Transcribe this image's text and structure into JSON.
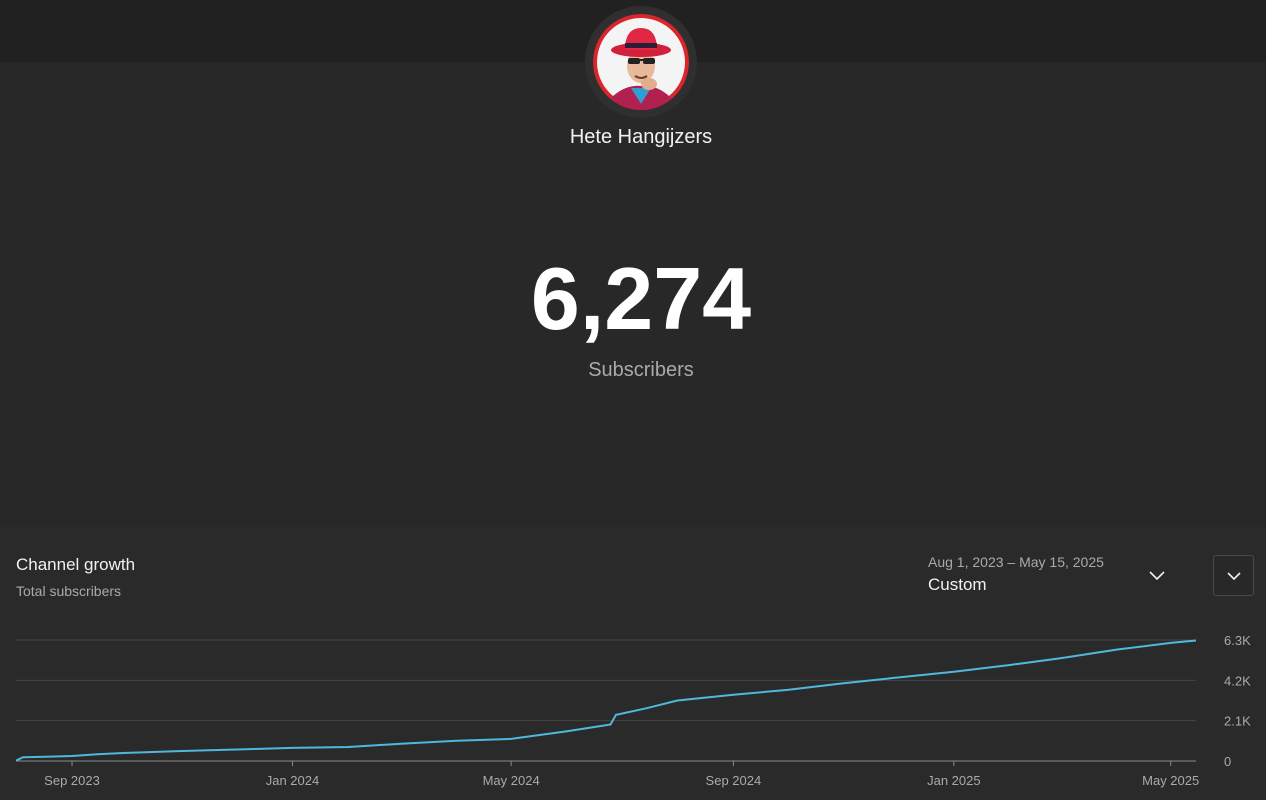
{
  "channel": {
    "name": "Hete Hangijzers",
    "subscriber_count": "6,274",
    "subscriber_label": "Subscribers"
  },
  "growth": {
    "title": "Channel growth",
    "subtitle": "Total subscribers",
    "date_range": "Aug 1, 2023 – May 15, 2025",
    "date_range_label": "Custom"
  },
  "icons": {
    "date_dropdown": "chevron-down-icon",
    "expand": "chevron-down-icon"
  },
  "colors": {
    "line": "#4fb8dc",
    "background": "#282828"
  },
  "chart_data": {
    "type": "line",
    "title": "",
    "xlabel": "",
    "ylabel": "",
    "x_ticks": [
      "Sep 2023",
      "Jan 2024",
      "May 2024",
      "Sep 2024",
      "Jan 2025",
      "May 2025"
    ],
    "y_ticks": [
      "0",
      "2.1K",
      "4.2K",
      "6.3K"
    ],
    "y_tick_values": [
      0,
      2100,
      4200,
      6300
    ],
    "xlim": [
      "2023-08-01",
      "2025-05-15"
    ],
    "ylim": [
      0,
      6300
    ],
    "grid": true,
    "series": [
      {
        "values": [
          {
            "x": "2023-08-01",
            "y": 20
          },
          {
            "x": "2023-08-05",
            "y": 200
          },
          {
            "x": "2023-08-20",
            "y": 230
          },
          {
            "x": "2023-09-01",
            "y": 260
          },
          {
            "x": "2023-09-15",
            "y": 350
          },
          {
            "x": "2023-10-01",
            "y": 420
          },
          {
            "x": "2023-11-01",
            "y": 520
          },
          {
            "x": "2023-12-01",
            "y": 600
          },
          {
            "x": "2024-01-01",
            "y": 680
          },
          {
            "x": "2024-02-01",
            "y": 730
          },
          {
            "x": "2024-03-01",
            "y": 900
          },
          {
            "x": "2024-04-01",
            "y": 1050
          },
          {
            "x": "2024-05-01",
            "y": 1150
          },
          {
            "x": "2024-06-01",
            "y": 1550
          },
          {
            "x": "2024-06-25",
            "y": 1900
          },
          {
            "x": "2024-06-28",
            "y": 2400
          },
          {
            "x": "2024-07-15",
            "y": 2750
          },
          {
            "x": "2024-08-01",
            "y": 3150
          },
          {
            "x": "2024-09-01",
            "y": 3450
          },
          {
            "x": "2024-10-01",
            "y": 3700
          },
          {
            "x": "2024-11-01",
            "y": 4050
          },
          {
            "x": "2024-12-01",
            "y": 4350
          },
          {
            "x": "2025-01-01",
            "y": 4650
          },
          {
            "x": "2025-02-01",
            "y": 5000
          },
          {
            "x": "2025-03-01",
            "y": 5350
          },
          {
            "x": "2025-04-01",
            "y": 5800
          },
          {
            "x": "2025-05-01",
            "y": 6150
          },
          {
            "x": "2025-05-15",
            "y": 6274
          }
        ]
      }
    ]
  }
}
